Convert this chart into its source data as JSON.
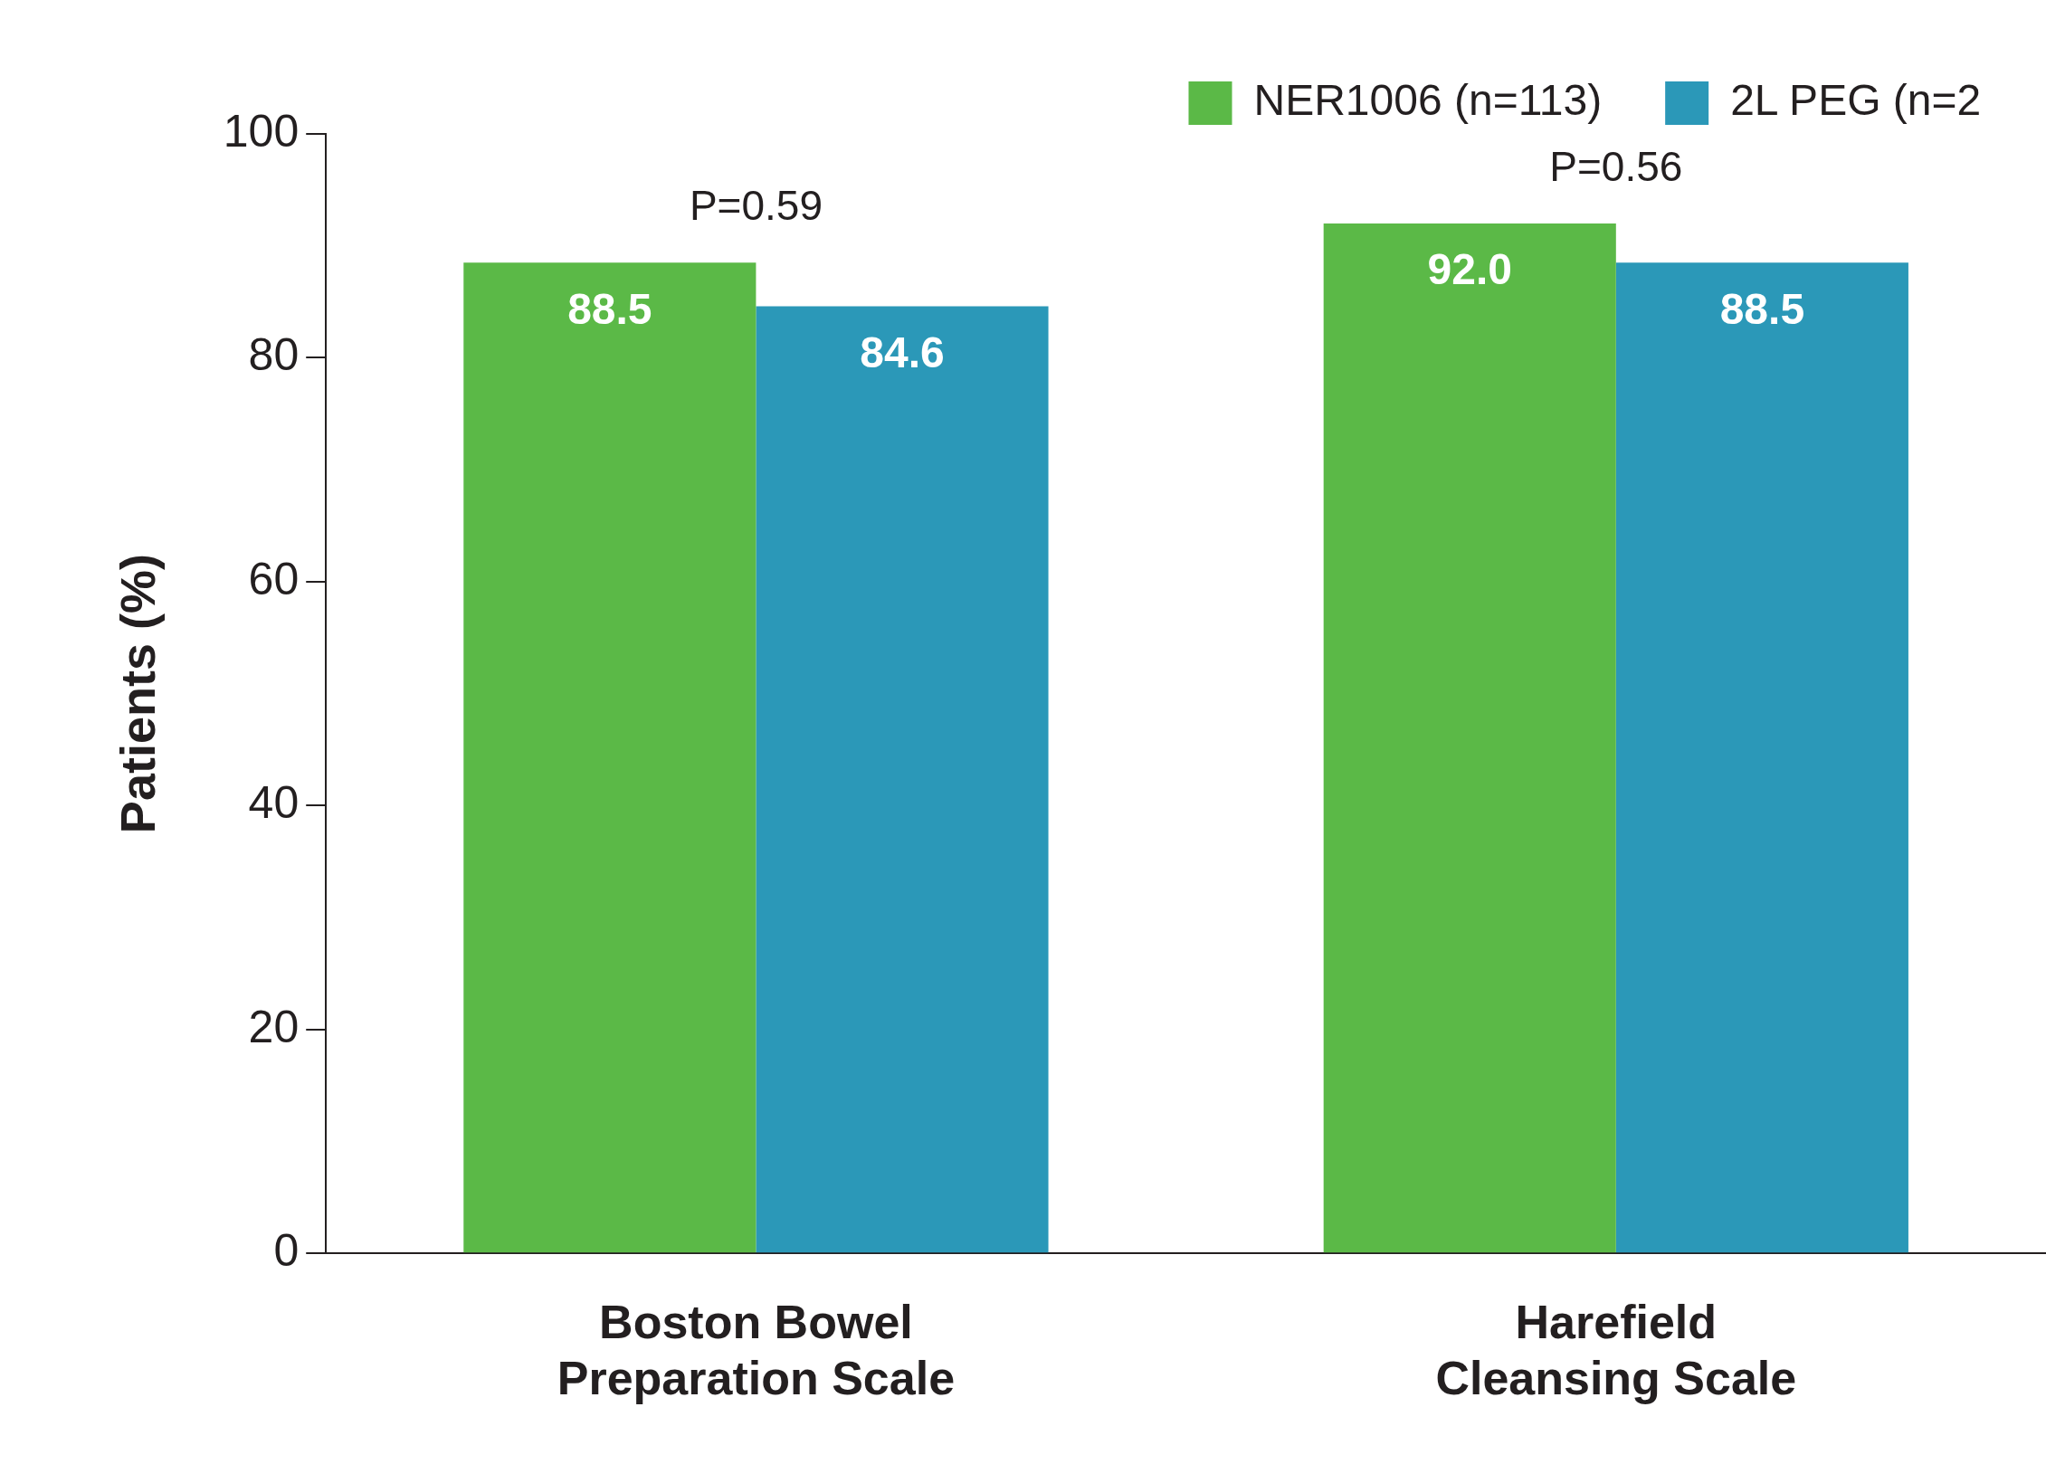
{
  "chart_data": {
    "type": "bar",
    "ylabel": "Patients (%)",
    "categories": [
      "Boston Bowel Preparation Scale",
      "Harefield Cleansing Scale"
    ],
    "series": [
      {
        "name": "NER1006 (n=113)",
        "color": "#5bb947",
        "values": [
          88.5,
          92.0
        ],
        "value_labels": [
          "88.5",
          "92.0"
        ]
      },
      {
        "name": "2L PEG (n=2",
        "color": "#2b98b8",
        "values": [
          84.6,
          88.5
        ],
        "value_labels": [
          "84.6",
          "88.5"
        ]
      }
    ],
    "ylim": [
      0,
      100
    ],
    "yticks": [
      0,
      20,
      40,
      60,
      80,
      100
    ],
    "legend": "top right",
    "annotations": [
      "P=0.59",
      "P=0.56"
    ]
  }
}
